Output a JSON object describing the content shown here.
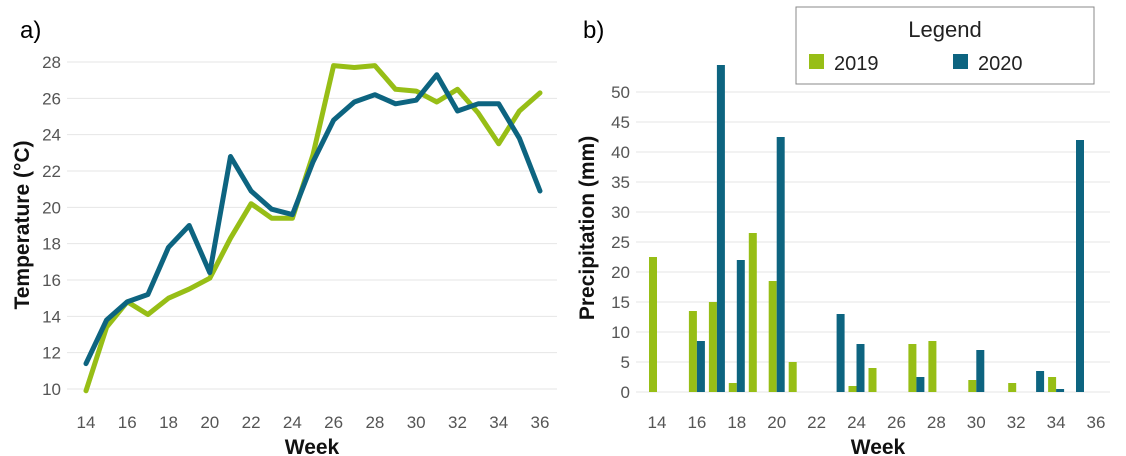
{
  "colors": {
    "y2019": "#97be16",
    "y2020": "#0d6480",
    "grid": "#e6e6e6",
    "tick": "#555555"
  },
  "legend": {
    "title": "Legend",
    "items": [
      {
        "label": "2019",
        "color": "#97be16"
      },
      {
        "label": "2020",
        "color": "#0d6480"
      }
    ]
  },
  "chart_data": [
    {
      "panel": "a)",
      "type": "line",
      "xlabel": "Week",
      "ylabel": "Temperature (°C)",
      "xlim": [
        14,
        36
      ],
      "ylim": [
        10,
        28
      ],
      "xticks": [
        14,
        16,
        18,
        20,
        22,
        24,
        26,
        28,
        30,
        32,
        34,
        36
      ],
      "yticks": [
        10,
        12,
        14,
        16,
        18,
        20,
        22,
        24,
        26,
        28
      ],
      "x": [
        14,
        15,
        16,
        17,
        18,
        19,
        20,
        21,
        22,
        23,
        24,
        25,
        26,
        27,
        28,
        29,
        30,
        31,
        32,
        33,
        34,
        35,
        36
      ],
      "series": [
        {
          "name": "2019",
          "color": "#97be16",
          "values": [
            9.9,
            13.4,
            14.8,
            14.1,
            15.0,
            15.5,
            16.1,
            18.3,
            20.2,
            19.4,
            19.4,
            22.9,
            27.8,
            27.7,
            27.8,
            26.5,
            26.4,
            25.8,
            26.5,
            25.2,
            23.5,
            25.3,
            26.3
          ]
        },
        {
          "name": "2020",
          "color": "#0d6480",
          "values": [
            11.4,
            13.8,
            14.8,
            15.2,
            17.8,
            19.0,
            16.4,
            22.8,
            20.9,
            19.9,
            19.6,
            22.5,
            24.8,
            25.8,
            26.2,
            25.7,
            25.9,
            27.3,
            25.3,
            25.7,
            25.7,
            23.8,
            20.9
          ]
        }
      ]
    },
    {
      "panel": "b)",
      "type": "bar",
      "xlabel": "Week",
      "ylabel": "Precipitation (mm)",
      "xlim": [
        13,
        37
      ],
      "ylim": [
        0,
        55
      ],
      "xticks": [
        14,
        16,
        18,
        20,
        22,
        24,
        26,
        28,
        30,
        32,
        34,
        36
      ],
      "yticks": [
        0,
        5,
        10,
        15,
        20,
        25,
        30,
        35,
        40,
        45,
        50
      ],
      "categories": [
        14,
        15,
        16,
        17,
        18,
        19,
        20,
        21,
        22,
        23,
        24,
        25,
        26,
        27,
        28,
        29,
        30,
        31,
        32,
        33,
        34,
        35,
        36
      ],
      "series": [
        {
          "name": "2019",
          "color": "#97be16",
          "values": [
            22.5,
            0,
            13.5,
            15,
            1.5,
            26.5,
            18.5,
            5,
            0,
            0,
            1,
            4,
            0,
            8,
            8.5,
            0,
            2,
            0,
            1.5,
            0,
            2.5,
            0,
            0
          ]
        },
        {
          "name": "2020",
          "color": "#0d6480",
          "values": [
            0,
            0,
            8.5,
            54.5,
            22,
            0,
            42.5,
            0,
            0,
            13,
            8,
            0,
            0,
            2.5,
            0,
            0,
            7,
            0,
            0,
            3.5,
            0.5,
            42,
            0
          ]
        }
      ]
    }
  ]
}
